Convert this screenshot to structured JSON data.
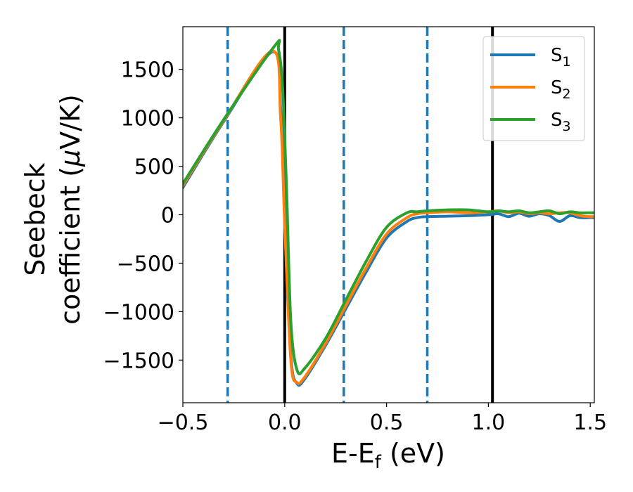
{
  "chart_data": {
    "type": "line",
    "xlabel": "E-E",
    "xlabel_sub": "f",
    "xlabel_unit": " (eV)",
    "ylabel_line1": "Seebeck",
    "ylabel_line2_prefix": "coefficient  (",
    "ylabel_mu": "μ",
    "ylabel_line2_suffix": "V/K)",
    "xlim": [
      -0.5,
      1.52
    ],
    "ylim": [
      -1940,
      1940
    ],
    "x_ticks": [
      -0.5,
      0.0,
      0.5,
      1.0,
      1.5
    ],
    "x_tick_labels": [
      "−0.5",
      "0.0",
      "0.5",
      "1.0",
      "1.5"
    ],
    "y_ticks": [
      -1500,
      -1000,
      -500,
      0,
      500,
      1000,
      1500
    ],
    "y_tick_labels": [
      "−1500",
      "−1000",
      "−500",
      "0",
      "500",
      "1000",
      "1500"
    ],
    "grid": false,
    "legend_position": "top-right",
    "vertical_lines": [
      {
        "x": -0.28,
        "style": "dashed",
        "color": "#1f77b4"
      },
      {
        "x": 0.0,
        "style": "solid",
        "color": "#000000"
      },
      {
        "x": 0.29,
        "style": "dashed",
        "color": "#1f77b4"
      },
      {
        "x": 0.7,
        "style": "dashed",
        "color": "#1f77b4"
      },
      {
        "x": 1.02,
        "style": "solid",
        "color": "#000000"
      }
    ],
    "series": [
      {
        "name": "S",
        "sub": "1",
        "color": "#1f77b4",
        "x": [
          -0.5,
          -0.3,
          -0.06,
          -0.02,
          0.0,
          0.03,
          0.06,
          0.1,
          0.2,
          0.3,
          0.4,
          0.5,
          0.6,
          0.65,
          0.7,
          0.8,
          0.9,
          1.0,
          1.05,
          1.1,
          1.15,
          1.2,
          1.25,
          1.3,
          1.35,
          1.4,
          1.45,
          1.5,
          1.52
        ],
        "y": [
          280,
          960,
          1680,
          1100,
          0,
          -1450,
          -1740,
          -1690,
          -1350,
          -970,
          -590,
          -240,
          -70,
          -30,
          -20,
          -15,
          -10,
          0,
          10,
          -20,
          15,
          -15,
          10,
          -10,
          -70,
          -10,
          -30,
          -30,
          -30
        ]
      },
      {
        "name": "S",
        "sub": "2",
        "color": "#ff7f0e",
        "x": [
          -0.5,
          -0.3,
          -0.06,
          -0.02,
          0.0,
          0.03,
          0.06,
          0.1,
          0.2,
          0.3,
          0.4,
          0.5,
          0.6,
          0.65,
          0.7,
          0.8,
          0.9,
          1.0,
          1.05,
          1.1,
          1.15,
          1.2,
          1.25,
          1.3,
          1.35,
          1.4,
          1.45,
          1.5,
          1.52
        ],
        "y": [
          300,
          970,
          1690,
          1000,
          -100,
          -1500,
          -1730,
          -1670,
          -1330,
          -940,
          -550,
          -200,
          -30,
          10,
          20,
          30,
          20,
          30,
          40,
          20,
          30,
          10,
          20,
          10,
          20,
          20,
          -10,
          -20,
          -20
        ]
      },
      {
        "name": "S",
        "sub": "3",
        "color": "#2ca02c",
        "x": [
          -0.5,
          -0.3,
          -0.05,
          -0.03,
          -0.01,
          0.01,
          0.03,
          0.06,
          0.1,
          0.2,
          0.3,
          0.4,
          0.5,
          0.6,
          0.65,
          0.7,
          0.8,
          0.9,
          1.0,
          1.05,
          1.1,
          1.15,
          1.2,
          1.25,
          1.3,
          1.35,
          1.4,
          1.45,
          1.5,
          1.52
        ],
        "y": [
          320,
          980,
          1740,
          1700,
          1300,
          200,
          -1100,
          -1600,
          -1580,
          -1280,
          -880,
          -480,
          -130,
          20,
          30,
          40,
          50,
          50,
          30,
          40,
          30,
          40,
          20,
          30,
          40,
          10,
          30,
          20,
          20,
          20
        ]
      }
    ]
  }
}
